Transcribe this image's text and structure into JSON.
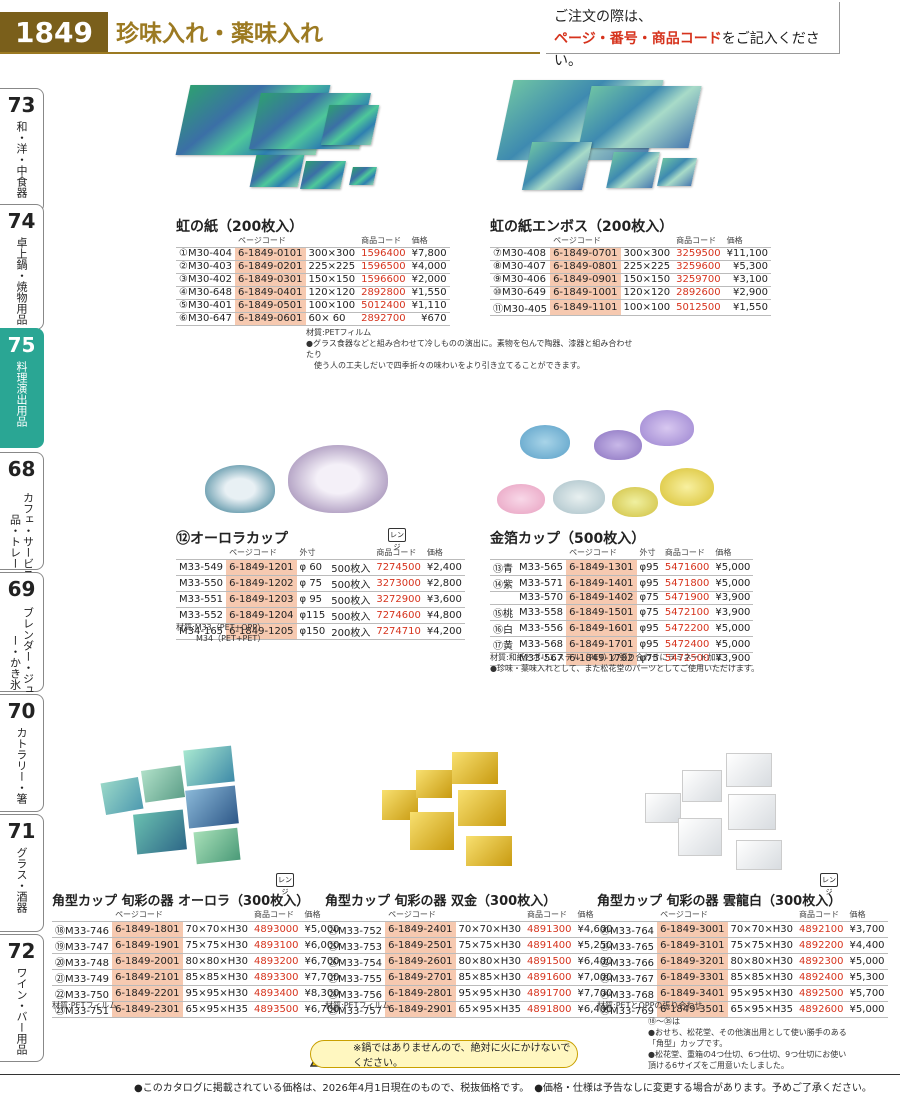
{
  "header": {
    "page_number": "1849",
    "title": "珍味入れ・薬味入れ",
    "note_line1": "ご注文の際は、",
    "note_red": "ページ・番号・商品コード",
    "note_line2": "をご記入ください。"
  },
  "sidebar": [
    {
      "num": "73",
      "label": "和・洋・中食器"
    },
    {
      "num": "74",
      "label": "卓上鍋・焼物用品"
    },
    {
      "num": "75",
      "label": "料理演出用品"
    },
    {
      "num": "68",
      "label": "カフェ・サービス用品・トレー"
    },
    {
      "num": "69",
      "label": "ブレンダー・ジューサー・かき氷"
    },
    {
      "num": "70",
      "label": "カトラリー・箸"
    },
    {
      "num": "71",
      "label": "グラス・酒器"
    },
    {
      "num": "72",
      "label": "ワイン・バー用品"
    }
  ],
  "headers": {
    "page_code": "ページコード",
    "product_code": "商品コード",
    "price": "価格",
    "size": "外寸"
  },
  "niji": {
    "title": "虹の紙（200枚入）",
    "rows": [
      {
        "no": "①",
        "model": "M30-404",
        "page": "6-1849-0101",
        "size": "300×300",
        "code": "1596400",
        "price": "¥7,800"
      },
      {
        "no": "②",
        "model": "M30-403",
        "page": "6-1849-0201",
        "size": "225×225",
        "code": "1596500",
        "price": "¥4,000"
      },
      {
        "no": "③",
        "model": "M30-402",
        "page": "6-1849-0301",
        "size": "150×150",
        "code": "1596600",
        "price": "¥2,000"
      },
      {
        "no": "④",
        "model": "M30-648",
        "page": "6-1849-0401",
        "size": "120×120",
        "code": "2892800",
        "price": "¥1,550"
      },
      {
        "no": "⑤",
        "model": "M30-401",
        "page": "6-1849-0501",
        "size": "100×100",
        "code": "5012400",
        "price": "¥1,110"
      },
      {
        "no": "⑥",
        "model": "M30-647",
        "page": "6-1849-0601",
        "size": "60× 60",
        "code": "2892700",
        "price": "¥670"
      }
    ],
    "note1": "材質:PETフィルム",
    "note2": "●グラス食器などと組み合わせて冷しものの演出に。素物を包んで陶器、漆器と組み合わせたり",
    "note3": "使う人の工夫しだいで四季折々の味わいをより引き立てることができます。"
  },
  "niji_emboss": {
    "title": "虹の紙エンボス（200枚入）",
    "rows": [
      {
        "no": "⑦",
        "model": "M30-408",
        "page": "6-1849-0701",
        "size": "300×300",
        "code": "3259500",
        "price": "¥11,100"
      },
      {
        "no": "⑧",
        "model": "M30-407",
        "page": "6-1849-0801",
        "size": "225×225",
        "code": "3259600",
        "price": "¥5,300"
      },
      {
        "no": "⑨",
        "model": "M30-406",
        "page": "6-1849-0901",
        "size": "150×150",
        "code": "3259700",
        "price": "¥3,100"
      },
      {
        "no": "⑩",
        "model": "M30-649",
        "page": "6-1849-1001",
        "size": "120×120",
        "code": "2892600",
        "price": "¥2,900"
      },
      {
        "no": "⑪",
        "model": "M30-405",
        "page": "6-1849-1101",
        "size": "100×100",
        "code": "5012500",
        "price": "¥1,550"
      }
    ]
  },
  "aurora": {
    "title": "⑫オーロラカップ",
    "range": "レンジ",
    "rows": [
      {
        "model": "M33-549",
        "page": "6-1849-1201",
        "size": "φ 60",
        "qty": "500枚入",
        "code": "7274500",
        "price": "¥2,400"
      },
      {
        "model": "M33-550",
        "page": "6-1849-1202",
        "size": "φ 75",
        "qty": "500枚入",
        "code": "3273000",
        "price": "¥2,800"
      },
      {
        "model": "M33-551",
        "page": "6-1849-1203",
        "size": "φ 95",
        "qty": "500枚入",
        "code": "3272900",
        "price": "¥3,600"
      },
      {
        "model": "M33-552",
        "page": "6-1849-1204",
        "size": "φ115",
        "qty": "500枚入",
        "code": "7274600",
        "price": "¥4,800"
      },
      {
        "model": "M34-165",
        "page": "6-1849-1205",
        "size": "φ150",
        "qty": "200枚入",
        "code": "7274710",
        "price": "¥4,200"
      }
    ],
    "note1": "材質:M33（PET+OPP）",
    "note2": "M34（PET+PET）"
  },
  "kinpaku": {
    "title": "金箔カップ（500枚入）",
    "rows": [
      {
        "no": "⑬青",
        "model": "M33-565",
        "page": "6-1849-1301",
        "size": "φ95",
        "code": "5471600",
        "price": "¥5,000"
      },
      {
        "no": "⑭紫",
        "model": "M33-571",
        "page": "6-1849-1401",
        "size": "φ95",
        "code": "5471800",
        "price": "¥5,000"
      },
      {
        "no": "",
        "model": "M33-570",
        "page": "6-1849-1402",
        "size": "φ75",
        "code": "5471900",
        "price": "¥3,900"
      },
      {
        "no": "⑮桃",
        "model": "M33-558",
        "page": "6-1849-1501",
        "size": "φ75",
        "code": "5472100",
        "price": "¥3,900"
      },
      {
        "no": "⑯白",
        "model": "M33-556",
        "page": "6-1849-1601",
        "size": "φ95",
        "code": "5472200",
        "price": "¥5,000"
      },
      {
        "no": "⑰黄",
        "model": "M33-568",
        "page": "6-1849-1701",
        "size": "φ95",
        "code": "5472400",
        "price": "¥5,000"
      },
      {
        "no": "",
        "model": "M33-567",
        "page": "6-1849-1702",
        "size": "φ75",
        "code": "5472500",
        "price": "¥3,900"
      }
    ],
    "note1": "材質:和紙とポリエステル（PET）の張り合わせにラミネート加工",
    "note2": "●珍味・薬味入れとして、また松花堂のパーツとしてご使用いただけます。"
  },
  "kaku_aurora": {
    "title": "角型カップ 旬彩の器 オーロラ（300枚入）",
    "rows": [
      {
        "no": "⑱",
        "model": "M33-746",
        "page": "6-1849-1801",
        "size": "70×70×H30",
        "code": "4893000",
        "price": "¥5,000"
      },
      {
        "no": "⑲",
        "model": "M33-747",
        "page": "6-1849-1901",
        "size": "75×75×H30",
        "code": "4893100",
        "price": "¥6,000"
      },
      {
        "no": "⑳",
        "model": "M33-748",
        "page": "6-1849-2001",
        "size": "80×80×H30",
        "code": "4893200",
        "price": "¥6,700"
      },
      {
        "no": "㉑",
        "model": "M33-749",
        "page": "6-1849-2101",
        "size": "85×85×H30",
        "code": "4893300",
        "price": "¥7,700"
      },
      {
        "no": "㉒",
        "model": "M33-750",
        "page": "6-1849-2201",
        "size": "95×95×H30",
        "code": "4893400",
        "price": "¥8,300"
      },
      {
        "no": "㉓",
        "model": "M33-751",
        "page": "6-1849-2301",
        "size": "65×95×H35",
        "code": "4893500",
        "price": "¥6,700"
      }
    ],
    "note": "材質:PETフィルム"
  },
  "kaku_sokin": {
    "title": "角型カップ 旬彩の器 双金（300枚入）",
    "rows": [
      {
        "no": "㉔",
        "model": "M33-752",
        "page": "6-1849-2401",
        "size": "70×70×H30",
        "code": "4891300",
        "price": "¥4,600"
      },
      {
        "no": "㉕",
        "model": "M33-753",
        "page": "6-1849-2501",
        "size": "75×75×H30",
        "code": "4891400",
        "price": "¥5,250"
      },
      {
        "no": "㉖",
        "model": "M33-754",
        "page": "6-1849-2601",
        "size": "80×80×H30",
        "code": "4891500",
        "price": "¥6,400"
      },
      {
        "no": "㉗",
        "model": "M33-755",
        "page": "6-1849-2701",
        "size": "85×85×H30",
        "code": "4891600",
        "price": "¥7,000"
      },
      {
        "no": "㉘",
        "model": "M33-756",
        "page": "6-1849-2801",
        "size": "95×95×H30",
        "code": "4891700",
        "price": "¥7,700"
      },
      {
        "no": "㉙",
        "model": "M33-757",
        "page": "6-1849-2901",
        "size": "65×95×H35",
        "code": "4891800",
        "price": "¥6,400"
      }
    ],
    "note": "材質:PETフィルム"
  },
  "kaku_unryu": {
    "title": "角型カップ 旬彩の器 雲龍白（300枚入）",
    "rows": [
      {
        "no": "㉚",
        "model": "M33-764",
        "page": "6-1849-3001",
        "size": "70×70×H30",
        "code": "4892100",
        "price": "¥3,700"
      },
      {
        "no": "㉛",
        "model": "M33-765",
        "page": "6-1849-3101",
        "size": "75×75×H30",
        "code": "4892200",
        "price": "¥4,400"
      },
      {
        "no": "㉜",
        "model": "M33-766",
        "page": "6-1849-3201",
        "size": "80×80×H30",
        "code": "4892300",
        "price": "¥5,000"
      },
      {
        "no": "㉝",
        "model": "M33-767",
        "page": "6-1849-3301",
        "size": "85×85×H30",
        "code": "4892400",
        "price": "¥5,300"
      },
      {
        "no": "㉞",
        "model": "M33-768",
        "page": "6-1849-3401",
        "size": "95×95×H30",
        "code": "4892500",
        "price": "¥5,700"
      },
      {
        "no": "㉟",
        "model": "M33-769",
        "page": "6-1849-3501",
        "size": "65×95×H35",
        "code": "4892600",
        "price": "¥5,000"
      }
    ],
    "note1": "材質:PETとOPPの張り合わせ",
    "note2": "⑱〜㉟は",
    "note3": "●おせち、松花堂、その他演出用として使い勝手のある「角型」カップです。",
    "note4": "●松花堂、重箱の4つ仕切、6つ仕切、9つ仕切にお使い頂ける6サイズをご用意いたしました。"
  },
  "warning": "※鍋ではありませんので、絶対に火にかけないでください。",
  "footer": "●このカタログに掲載されている価格は、2026年4月1日現在のもので、税抜価格です。　●価格・仕様は予告なしに変更する場合があります。予めご了承ください。"
}
